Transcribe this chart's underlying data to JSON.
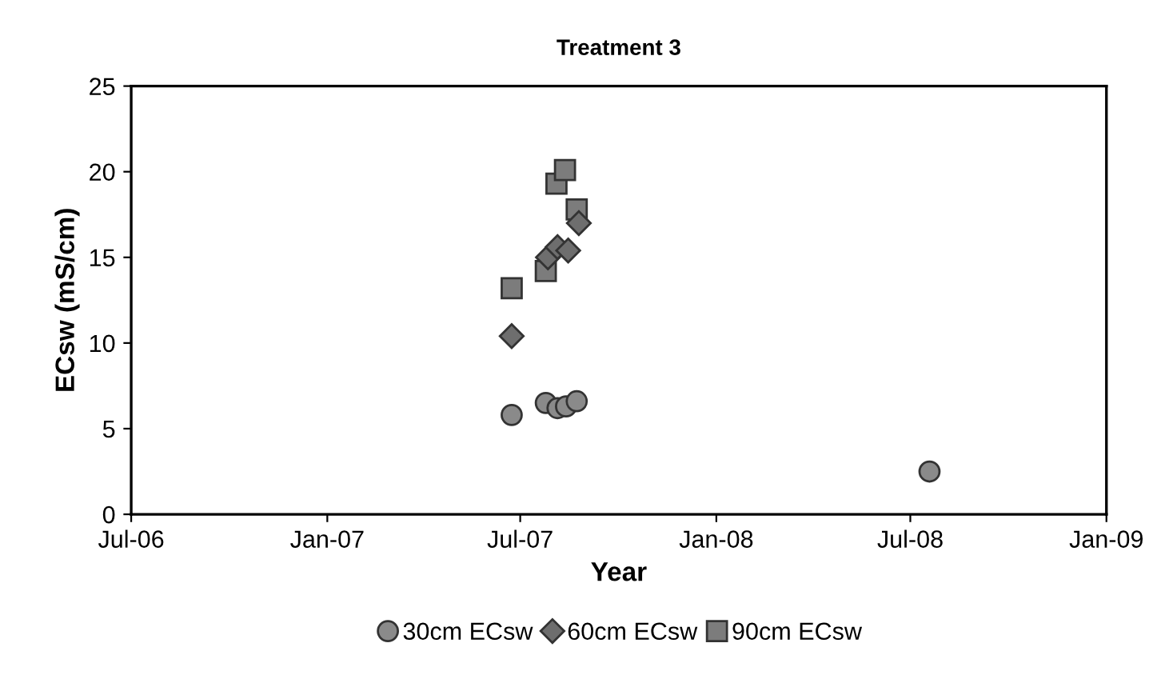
{
  "chart_data": {
    "type": "scatter",
    "title": "Treatment 3",
    "xlabel": "Year",
    "ylabel": "ECsw (mS/cm)",
    "series": [
      {
        "name": "30cm ECsw",
        "color": "#8a8a8a",
        "marker": "circle",
        "x": [
          "2007-06-23",
          "2007-07-25",
          "2007-08-05",
          "2007-08-13",
          "2007-08-23",
          "2008-07-19"
        ],
        "values": [
          5.8,
          6.5,
          6.2,
          6.3,
          6.6,
          2.5
        ]
      },
      {
        "name": "60cm ECsw",
        "color": "#6e6e6e",
        "marker": "diamond",
        "x": [
          "2007-06-23",
          "2007-07-27",
          "2007-08-05",
          "2007-08-15",
          "2007-08-25"
        ],
        "values": [
          10.4,
          15.0,
          15.6,
          15.4,
          17.0
        ]
      },
      {
        "name": "90cm ECsw",
        "color": "#7c7c7c",
        "marker": "square",
        "x": [
          "2007-06-23",
          "2007-07-25",
          "2007-08-04",
          "2007-08-12",
          "2007-08-23"
        ],
        "values": [
          13.2,
          14.2,
          19.3,
          20.1,
          17.8
        ]
      }
    ],
    "xlim": [
      "2006-07-01",
      "2009-01-01"
    ],
    "xticks": [
      {
        "value": "2006-07-01",
        "label": "Jul-06"
      },
      {
        "value": "2007-01-01",
        "label": "Jan-07"
      },
      {
        "value": "2007-07-01",
        "label": "Jul-07"
      },
      {
        "value": "2008-01-01",
        "label": "Jan-08"
      },
      {
        "value": "2008-07-01",
        "label": "Jul-08"
      },
      {
        "value": "2009-01-01",
        "label": "Jan-09"
      }
    ],
    "ylim": [
      0,
      25
    ],
    "yticks": [
      0,
      5,
      10,
      15,
      20,
      25
    ],
    "grid": false,
    "legend": "bottom"
  }
}
